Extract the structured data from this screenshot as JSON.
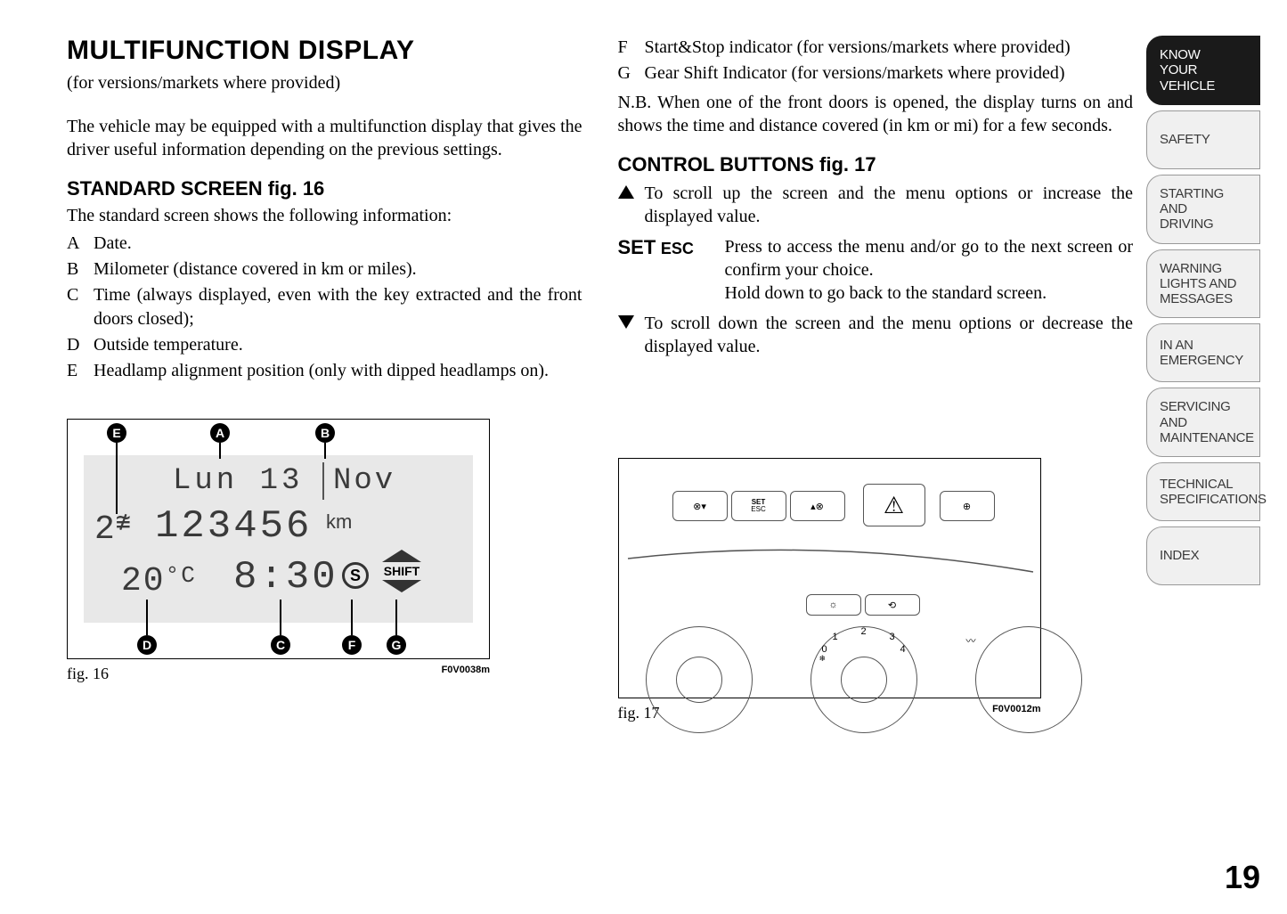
{
  "title": "MULTIFUNCTION DISPLAY",
  "subtitle": "(for versions/markets where provided)",
  "intro": "The vehicle may be equipped with a multifunction display that gives the driver useful information depending on the previous settings.",
  "section1_heading": "STANDARD SCREEN fig. 16",
  "section1_intro": "The standard screen shows the following information:",
  "items_left": [
    {
      "letter": "A",
      "text": "Date."
    },
    {
      "letter": "B",
      "text": "Milometer (distance covered in km or miles)."
    },
    {
      "letter": "C",
      "text": "Time (always displayed, even with the key extracted and the front doors closed);"
    },
    {
      "letter": "D",
      "text": "Outside temperature."
    },
    {
      "letter": "E",
      "text": "Headlamp alignment position (only with dipped headlamps on)."
    }
  ],
  "items_right": [
    {
      "letter": "F",
      "text": "Start&Stop indicator (for versions/markets where provided)"
    },
    {
      "letter": "G",
      "text": "Gear Shift Indicator (for versions/markets where provided)"
    }
  ],
  "nb_text": "N.B. When one of the front doors is opened, the display turns on and shows the time and distance covered (in km or mi) for a few seconds.",
  "section2_heading": "CONTROL BUTTONS fig. 17",
  "controls": {
    "up": "To scroll up the screen and the menu options or increase the displayed value.",
    "set_label": "SET",
    "esc_label": "ESC",
    "set_line1": "Press to access the menu and/or go to the next screen or confirm your choice.",
    "set_line2": "Hold down to go back to the standard screen.",
    "down": "To scroll down the screen and the menu options or decrease the displayed value."
  },
  "fig16": {
    "label": "fig. 16",
    "code": "F0V0038m",
    "display": {
      "day": "Lun",
      "date": "13",
      "month": "Nov",
      "headlamp": "2",
      "odometer": "123456",
      "odo_unit": "km",
      "temp": "20",
      "temp_unit": "°C",
      "time": "8:30",
      "ss": "S",
      "shift": "SHIFT"
    },
    "callouts": [
      "E",
      "A",
      "B",
      "D",
      "C",
      "F",
      "G"
    ]
  },
  "fig17": {
    "label": "fig. 17",
    "code": "F0V0012m",
    "buttons": {
      "set": "SET\nESC",
      "dial": [
        "0",
        "1",
        "2",
        "3",
        "4"
      ]
    }
  },
  "tabs": [
    {
      "label": "KNOW\nYOUR\nVEHICLE",
      "active": true
    },
    {
      "label": "SAFETY",
      "active": false
    },
    {
      "label": "STARTING\nAND\nDRIVING",
      "active": false
    },
    {
      "label": "WARNING\nLIGHTS AND\nMESSAGES",
      "active": false
    },
    {
      "label": "IN AN\nEMERGENCY",
      "active": false
    },
    {
      "label": "SERVICING\nAND\nMAINTENANCE",
      "active": false
    },
    {
      "label": "TECHNICAL\nSPECIFICATIONS",
      "active": false
    },
    {
      "label": "INDEX",
      "active": false
    }
  ],
  "page_number": "19"
}
